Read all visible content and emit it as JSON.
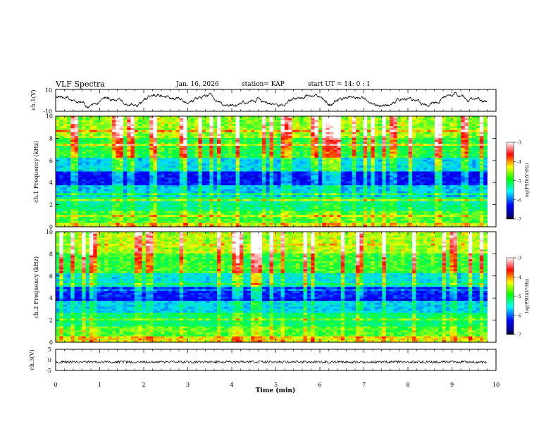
{
  "header": {
    "title": "VLF Spectra",
    "date": "Jan. 16, 2026",
    "station": "station= KAP",
    "start": "start  UT =  14: 0  : 1"
  },
  "chart_data": [
    {
      "type": "line",
      "name": "ch1-waveform",
      "ylabel": "ch.1(V)",
      "ylim": [
        -10,
        10
      ],
      "yticks": [
        "10",
        "-10"
      ],
      "xlim": [
        0,
        10
      ],
      "data_end_min": 9.8,
      "series": [
        {
          "name": "ch.1",
          "shape": "noisy oscillation, amplitude about 8 V, mean about 0 V"
        }
      ]
    },
    {
      "type": "heatmap",
      "name": "ch1-spectrogram",
      "ylabel": "ch.1 Frequency (kHz)",
      "ylim": [
        0,
        10
      ],
      "yticks": [
        "0",
        "2",
        "4",
        "6",
        "8",
        "10"
      ],
      "xlim": [
        0,
        10
      ],
      "colorbar": {
        "label": "log(PSD)(V²/Hz)",
        "range": [
          -7,
          -3
        ],
        "ticks": [
          "-3",
          "-4",
          "-5",
          "-6",
          "-7"
        ]
      }
    },
    {
      "type": "heatmap",
      "name": "ch2-spectrogram",
      "ylabel": "ch.2 Frequency (kHz)",
      "ylim": [
        0,
        10
      ],
      "yticks": [
        "0",
        "2",
        "4",
        "6",
        "8",
        "10"
      ],
      "xlim": [
        0,
        10
      ],
      "colorbar": {
        "label": "log(PSD)(V²/Hz)",
        "range": [
          -7,
          -3
        ],
        "ticks": [
          "-3",
          "-4",
          "-5",
          "-6",
          "-7"
        ]
      }
    },
    {
      "type": "line",
      "name": "ch3-waveform",
      "ylabel": "ch.3(V)",
      "ylim": [
        -5,
        5
      ],
      "yticks": [
        "5",
        "0",
        "-5"
      ],
      "xlim": [
        0,
        10
      ],
      "data_end_min": 9.8,
      "series": [
        {
          "name": "ch.3",
          "level_v": -1,
          "shape": "constant level about -1 V with small noise"
        }
      ]
    }
  ],
  "xaxis": {
    "label": "Time  (min)",
    "ticks": [
      "0",
      "1",
      "2",
      "3",
      "4",
      "5",
      "6",
      "7",
      "8",
      "9",
      "10"
    ]
  }
}
